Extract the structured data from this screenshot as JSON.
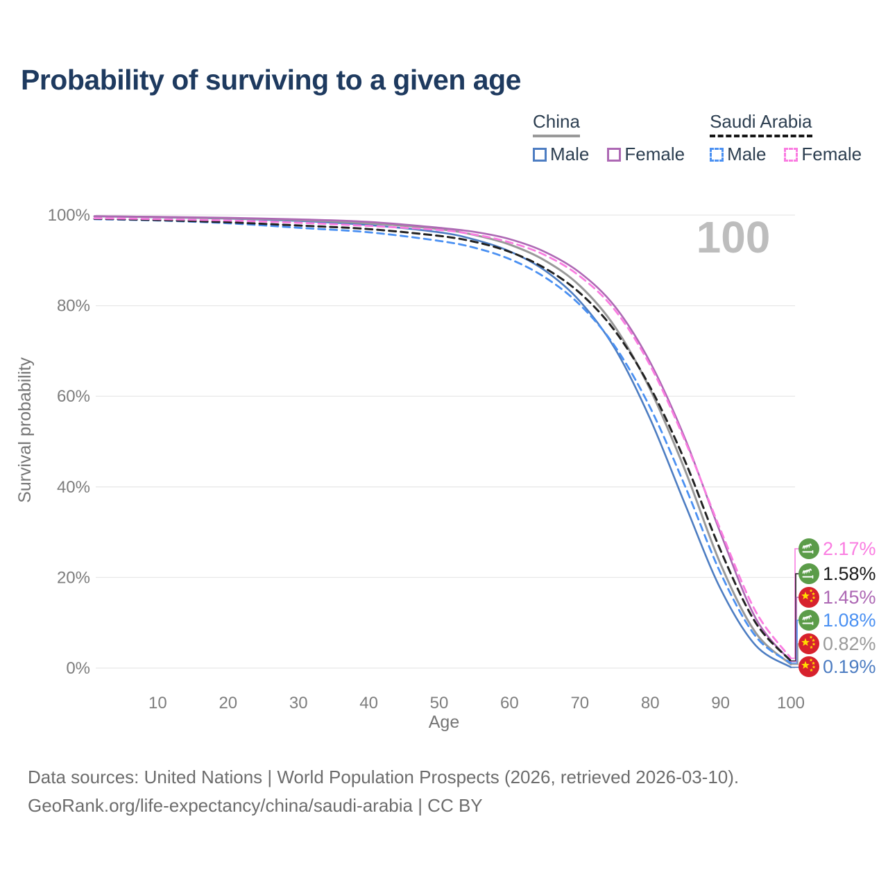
{
  "title": "Probability of surviving to a given age",
  "legend": {
    "groups": [
      {
        "name": "China",
        "line_style": "solid",
        "underline_color": "#999999",
        "items": [
          {
            "label": "Male",
            "color": "#4d7dc2"
          },
          {
            "label": "Female",
            "color": "#ad68b4"
          }
        ]
      },
      {
        "name": "Saudi Arabia",
        "line_style": "dashed",
        "underline_color": "#161616",
        "items": [
          {
            "label": "Male",
            "color": "#4a90f2"
          },
          {
            "label": "Female",
            "color": "#fa7ce1"
          }
        ]
      }
    ]
  },
  "chart_data": {
    "type": "line",
    "title": "Probability of surviving to a given age",
    "xlabel": "Age",
    "ylabel": "Survival probability",
    "watermark": "100",
    "xlim": [
      0,
      100
    ],
    "ylim": [
      0,
      100
    ],
    "grid": "horizontal",
    "legend_position": "top-right",
    "xticks": [
      10,
      20,
      30,
      40,
      50,
      60,
      70,
      80,
      90,
      100
    ],
    "yticks": [
      {
        "label": "0%",
        "value": 0
      },
      {
        "label": "20%",
        "value": 20
      },
      {
        "label": "40%",
        "value": 40
      },
      {
        "label": "60%",
        "value": 60
      },
      {
        "label": "80%",
        "value": 80
      },
      {
        "label": "100%",
        "value": 100
      }
    ],
    "series": [
      {
        "id": "china-male",
        "country": "China",
        "sex": "Male",
        "color": "#4d7dc2",
        "line_style": "solid",
        "width": 2.6,
        "flag": "china-flag",
        "end_label": "0.19%",
        "end_value": 0.19,
        "label_color": "#4d7dc2",
        "points": [
          [
            1,
            99.7
          ],
          [
            10,
            99.5
          ],
          [
            20,
            99.2
          ],
          [
            30,
            98.7
          ],
          [
            40,
            97.8
          ],
          [
            50,
            96.2
          ],
          [
            55,
            94.6
          ],
          [
            60,
            92.0
          ],
          [
            65,
            87.8
          ],
          [
            70,
            81.0
          ],
          [
            75,
            70.5
          ],
          [
            80,
            55.0
          ],
          [
            85,
            36.0
          ],
          [
            90,
            17.5
          ],
          [
            95,
            5.0
          ],
          [
            100,
            0.19
          ]
        ]
      },
      {
        "id": "china-all",
        "country": "China",
        "sex": "All",
        "color": "#999999",
        "line_style": "solid",
        "width": 3,
        "flag": "china-flag",
        "end_label": "0.82%",
        "end_value": 0.82,
        "label_color": "#9a9a9a",
        "points": [
          [
            1,
            99.72
          ],
          [
            10,
            99.55
          ],
          [
            20,
            99.3
          ],
          [
            30,
            98.9
          ],
          [
            40,
            98.2
          ],
          [
            50,
            96.9
          ],
          [
            55,
            95.6
          ],
          [
            60,
            93.5
          ],
          [
            65,
            90.0
          ],
          [
            70,
            84.4
          ],
          [
            75,
            75.3
          ],
          [
            80,
            61.5
          ],
          [
            85,
            43.5
          ],
          [
            90,
            23.0
          ],
          [
            95,
            7.8
          ],
          [
            100,
            0.82
          ]
        ]
      },
      {
        "id": "china-female",
        "country": "China",
        "sex": "Female",
        "color": "#ad68b4",
        "line_style": "solid",
        "width": 2.6,
        "flag": "china-flag",
        "end_label": "1.45%",
        "end_value": 1.45,
        "label_color": "#ad68b4",
        "points": [
          [
            1,
            99.75
          ],
          [
            10,
            99.6
          ],
          [
            20,
            99.4
          ],
          [
            30,
            99.05
          ],
          [
            40,
            98.5
          ],
          [
            50,
            97.2
          ],
          [
            55,
            96.3
          ],
          [
            60,
            94.7
          ],
          [
            65,
            91.9
          ],
          [
            70,
            87.3
          ],
          [
            75,
            79.8
          ],
          [
            80,
            67.5
          ],
          [
            85,
            50.5
          ],
          [
            90,
            29.8
          ],
          [
            95,
            11.0
          ],
          [
            100,
            1.45
          ]
        ]
      },
      {
        "id": "saudi-male",
        "country": "Saudi Arabia",
        "sex": "Male",
        "color": "#4a90f2",
        "line_style": "dashed",
        "width": 2.8,
        "flag": "saudi-arabia-flag",
        "end_label": "1.08%",
        "end_value": 1.08,
        "label_color": "#4a90f2",
        "points": [
          [
            1,
            99.1
          ],
          [
            10,
            98.8
          ],
          [
            20,
            98.2
          ],
          [
            30,
            97.2
          ],
          [
            40,
            96.2
          ],
          [
            50,
            94.3
          ],
          [
            55,
            92.8
          ],
          [
            60,
            90.3
          ],
          [
            65,
            86.3
          ],
          [
            70,
            80.2
          ],
          [
            75,
            71.0
          ],
          [
            80,
            57.5
          ],
          [
            85,
            40.0
          ],
          [
            90,
            21.0
          ],
          [
            95,
            7.0
          ],
          [
            100,
            1.08
          ]
        ]
      },
      {
        "id": "saudi-all",
        "country": "Saudi Arabia",
        "sex": "All",
        "color": "#222222",
        "line_style": "dashed",
        "width": 3,
        "flag": "saudi-arabia-flag",
        "end_label": "1.58%",
        "end_value": 1.58,
        "label_color": "#1a1a1a",
        "points": [
          [
            1,
            99.2
          ],
          [
            10,
            98.9
          ],
          [
            20,
            98.4
          ],
          [
            30,
            97.7
          ],
          [
            40,
            96.9
          ],
          [
            50,
            95.4
          ],
          [
            55,
            94.1
          ],
          [
            60,
            91.9
          ],
          [
            65,
            88.3
          ],
          [
            70,
            82.8
          ],
          [
            75,
            74.4
          ],
          [
            80,
            62.0
          ],
          [
            85,
            45.5
          ],
          [
            90,
            26.0
          ],
          [
            95,
            10.0
          ],
          [
            100,
            1.58
          ]
        ]
      },
      {
        "id": "saudi-female",
        "country": "Saudi Arabia",
        "sex": "Female",
        "color": "#fa7ce1",
        "line_style": "dashed",
        "width": 2.8,
        "flag": "saudi-arabia-flag",
        "end_label": "2.17%",
        "end_value": 2.17,
        "label_color": "#fa7ce1",
        "points": [
          [
            1,
            99.3
          ],
          [
            10,
            99.1
          ],
          [
            20,
            98.8
          ],
          [
            30,
            98.3
          ],
          [
            40,
            97.6
          ],
          [
            50,
            96.7
          ],
          [
            55,
            95.7
          ],
          [
            60,
            94.0
          ],
          [
            65,
            91.2
          ],
          [
            70,
            86.5
          ],
          [
            75,
            79.0
          ],
          [
            80,
            66.8
          ],
          [
            85,
            50.0
          ],
          [
            90,
            30.5
          ],
          [
            95,
            12.5
          ],
          [
            100,
            2.17
          ]
        ]
      }
    ],
    "flag_colors": {
      "china_red": "#d7212d",
      "china_star_yellow": "#ffde00",
      "saudi_green": "#5b9c49",
      "saudi_white": "#ffffff"
    }
  },
  "footer": {
    "line1": "Data sources: United Nations | World Population Prospects (2026, retrieved 2026-03-10).",
    "line2": "GeoRank.org/life-expectancy/china/saudi-arabia | CC BY"
  }
}
